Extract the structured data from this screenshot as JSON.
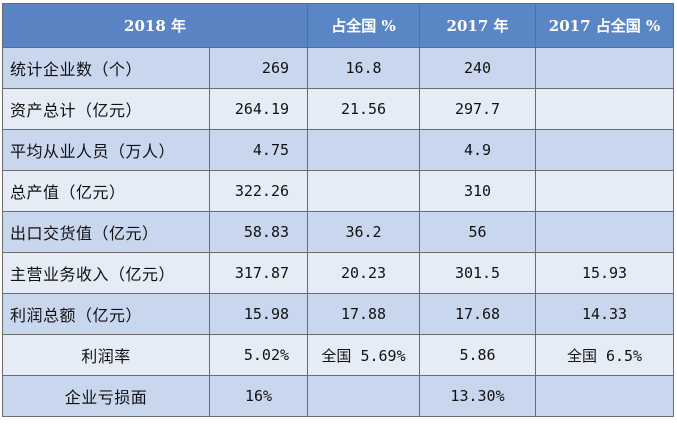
{
  "table": {
    "headers": [
      "2018 年",
      "占全国 %",
      "2017 年",
      "2017 占全国 %"
    ],
    "rows": [
      {
        "label": "统计企业数（个）",
        "v2018": "269",
        "pct2018": "16.8",
        "v2017": "240",
        "pct2017": ""
      },
      {
        "label": "资产总计（亿元）",
        "v2018": "264.19",
        "pct2018": "21.56",
        "v2017": "297.7",
        "pct2017": ""
      },
      {
        "label": "平均从业人员（万人）",
        "v2018": "4.75",
        "pct2018": "",
        "v2017": "4.9",
        "pct2017": ""
      },
      {
        "label": "总产值（亿元）",
        "v2018": "322.26",
        "pct2018": "",
        "v2017": "310",
        "pct2017": ""
      },
      {
        "label": "出口交货值（亿元）",
        "v2018": "58.83",
        "pct2018": "36.2",
        "v2017": "56",
        "pct2017": ""
      },
      {
        "label": "主营业务收入（亿元）",
        "v2018": "317.87",
        "pct2018": "20.23",
        "v2017": "301.5",
        "pct2017": "15.93"
      },
      {
        "label": "利润总额（亿元）",
        "v2018": "15.98",
        "pct2018": "17.88",
        "v2017": "17.68",
        "pct2017": "14.33"
      },
      {
        "label": "利润率",
        "v2018": "5.02%",
        "pct2018": "全国 5.69%",
        "v2017": "5.86",
        "pct2017": "全国 6.5%"
      },
      {
        "label": "企业亏损面",
        "v2018": "16%",
        "pct2018": "",
        "v2017": "13.30%",
        "pct2017": ""
      }
    ]
  },
  "colors": {
    "header_bg": "#5b86c6",
    "row_odd": "#c9d7ee",
    "row_even": "#e6ecf6",
    "border": "#6b6b6b"
  }
}
